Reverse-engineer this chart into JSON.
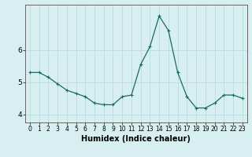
{
  "x": [
    0,
    1,
    2,
    3,
    4,
    5,
    6,
    7,
    8,
    9,
    10,
    11,
    12,
    13,
    14,
    15,
    16,
    17,
    18,
    19,
    20,
    21,
    22,
    23
  ],
  "y": [
    5.3,
    5.3,
    5.15,
    4.95,
    4.75,
    4.65,
    4.55,
    4.35,
    4.3,
    4.3,
    4.55,
    4.6,
    5.55,
    6.1,
    7.05,
    6.6,
    5.3,
    4.55,
    4.2,
    4.2,
    4.35,
    4.6,
    4.6,
    4.5
  ],
  "line_color": "#1a6b5e",
  "marker": "+",
  "marker_size": 3,
  "marker_lw": 0.8,
  "bg_color": "#d7eff0",
  "grid_color": "#b8dde0",
  "xlabel": "Humidex (Indice chaleur)",
  "ylim": [
    3.75,
    7.4
  ],
  "xlim": [
    -0.5,
    23.5
  ],
  "yticks": [
    4,
    5,
    6
  ],
  "xticks": [
    0,
    1,
    2,
    3,
    4,
    5,
    6,
    7,
    8,
    9,
    10,
    11,
    12,
    13,
    14,
    15,
    16,
    17,
    18,
    19,
    20,
    21,
    22,
    23
  ],
  "tick_label_size": 5.5,
  "xlabel_size": 7.0,
  "line_width": 0.9
}
